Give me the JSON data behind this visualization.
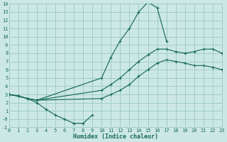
{
  "xlabel": "Humidex (Indice chaleur)",
  "bg_color": "#cce8e5",
  "grid_color": "#a0ccc8",
  "line_color": "#1a6b5a",
  "xlim": [
    0,
    23
  ],
  "ylim": [
    -1,
    14
  ],
  "xticks": [
    0,
    1,
    2,
    3,
    4,
    5,
    6,
    7,
    8,
    9,
    10,
    11,
    12,
    13,
    14,
    15,
    16,
    17,
    18,
    19,
    20,
    21,
    22,
    23
  ],
  "yticks": [
    -1,
    0,
    1,
    2,
    3,
    4,
    5,
    6,
    7,
    8,
    9,
    10,
    11,
    12,
    13,
    14
  ],
  "ytick_labels": [
    "-1",
    "-0",
    "1",
    "2",
    "3",
    "4",
    "5",
    "6",
    "7",
    "8",
    "9",
    "10",
    "11",
    "12",
    "13",
    "14"
  ],
  "line_peak_x": [
    0,
    1,
    2,
    3,
    10,
    11,
    12,
    13,
    14,
    15,
    16,
    17
  ],
  "line_peak_y": [
    3.0,
    2.8,
    2.5,
    2.3,
    5.0,
    7.5,
    9.5,
    11.0,
    13.0,
    14.2,
    13.5,
    9.5
  ],
  "line_upper_x": [
    0,
    1,
    2,
    3,
    10,
    11,
    12,
    13,
    14,
    15,
    16,
    17,
    18,
    19,
    20,
    21,
    22,
    23
  ],
  "line_upper_y": [
    3.0,
    2.8,
    2.5,
    2.3,
    3.5,
    4.2,
    5.0,
    6.0,
    7.0,
    7.8,
    8.5,
    8.5,
    8.2,
    8.0,
    8.2,
    8.5,
    8.5,
    8.0
  ],
  "line_mid_x": [
    0,
    1,
    2,
    3,
    10,
    11,
    12,
    13,
    14,
    15,
    16,
    17,
    18,
    19,
    20,
    21,
    22,
    23
  ],
  "line_mid_y": [
    3.0,
    2.8,
    2.5,
    2.3,
    2.5,
    3.0,
    3.5,
    4.2,
    5.2,
    6.0,
    6.8,
    7.2,
    7.0,
    6.8,
    6.5,
    6.5,
    6.3,
    6.0
  ],
  "line_dip_x": [
    0,
    1,
    2,
    3,
    4,
    5,
    6,
    7,
    8,
    9
  ],
  "line_dip_y": [
    3.0,
    2.8,
    2.5,
    2.0,
    1.2,
    0.5,
    0.0,
    -0.5,
    -0.5,
    0.5
  ]
}
